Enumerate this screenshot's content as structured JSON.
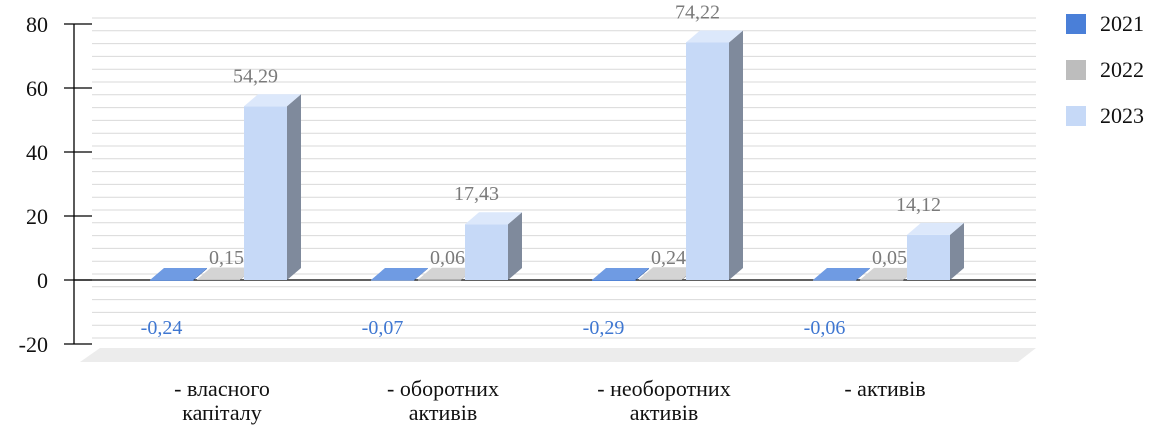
{
  "chart_data": {
    "type": "bar",
    "categories": [
      "- власного\nкапіталу",
      "- оборотних\nактивів",
      "- необоротних\nактивів",
      "- активів"
    ],
    "series": [
      {
        "name": "2021",
        "values": [
          -0.24,
          -0.07,
          -0.29,
          -0.06
        ],
        "labels": [
          "-0,24",
          "-0,07",
          "-0,29",
          "-0,06"
        ]
      },
      {
        "name": "2022",
        "values": [
          0.15,
          0.06,
          0.24,
          0.05
        ],
        "labels": [
          "0,15",
          "0,06",
          "0,24",
          "0,05"
        ]
      },
      {
        "name": "2023",
        "values": [
          54.29,
          17.43,
          74.22,
          14.12
        ],
        "labels": [
          "54,29",
          "17,43",
          "74,22",
          "14,12"
        ]
      }
    ],
    "ylim": [
      -20,
      80
    ],
    "yticks": [
      80,
      60,
      40,
      20,
      0,
      -20
    ],
    "grid": true,
    "legend_position": "top-right",
    "colors": {
      "2021": "#4a7fd8",
      "2022": "#bdbdbd",
      "2023": "#c6d9f7",
      "label_2021": "#3f77d1",
      "label_other": "#7a7a7a",
      "grid": "#d9d9d9",
      "floor": "#ececec"
    }
  }
}
